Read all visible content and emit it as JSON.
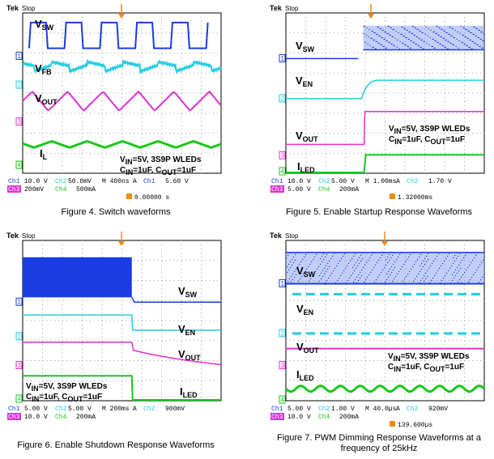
{
  "scope_brand": "Tek",
  "scope_state": "Stop",
  "colors": {
    "ch1": "#1a3ce0",
    "ch2": "#22cde0",
    "ch3": "#e030d0",
    "ch4": "#18c818",
    "trig": "#f08c10"
  },
  "panels": [
    {
      "labels": [
        [
          "V",
          "SW",
          ""
        ],
        [
          "V",
          "FB",
          ""
        ],
        [
          "V",
          "OUT",
          ""
        ],
        [
          "I",
          "L",
          ""
        ]
      ],
      "note_line1": [
        "V",
        "IN",
        "=5V, 3S9P WLEDs"
      ],
      "note_line2": [
        "C",
        "IN",
        "=1uF, C",
        "OUT",
        "=1uF"
      ],
      "status_row1": [
        "Ch1",
        "10.0 V",
        "Ch2",
        "50.0mV",
        "M 400ns",
        "A",
        "Ch1",
        "5.60 V"
      ],
      "status_row2": [
        "Ch3",
        "200mV",
        "Ch4",
        "500mA"
      ],
      "trigger_text": "0.00000 s",
      "caption": "Figure 4. Switch waveforms"
    },
    {
      "labels": [
        [
          "V",
          "SW",
          ""
        ],
        [
          "V",
          "EN",
          ""
        ],
        [
          "V",
          "OUT",
          ""
        ],
        [
          "I",
          "LED",
          ""
        ]
      ],
      "note_line1": [
        "V",
        "IN",
        "=5V, 3S9P WLEDs"
      ],
      "note_line2": [
        "C",
        "IN",
        "=1uF, C",
        "OUT",
        "=1uF"
      ],
      "status_row1": [
        "Ch1",
        "10.0 V",
        "Ch2",
        "5.00 V",
        "M 1.00ms",
        "A",
        "Ch2",
        "1.70 V"
      ],
      "status_row2": [
        "Ch3",
        "5.00 V",
        "Ch4",
        "200mA"
      ],
      "trigger_text": "1.32000ms",
      "caption": "Figure 5. Enable Startup Response Waveforms"
    },
    {
      "labels": [
        [
          "V",
          "SW",
          ""
        ],
        [
          "V",
          "EN",
          ""
        ],
        [
          "V",
          "OUT",
          ""
        ],
        [
          "I",
          "LED",
          ""
        ]
      ],
      "note_line1": [
        "V",
        "IN",
        "=5V, 3S9P WLEDs"
      ],
      "note_line2": [
        "C",
        "IN",
        "=1uF, C",
        "OUT",
        "=1uF"
      ],
      "status_row1": [
        "Ch1",
        "5.00 V",
        "Ch2",
        "5.00 V",
        "M 200ms",
        "A",
        "Ch2",
        "900mV"
      ],
      "status_row2": [
        "Ch3",
        "10.0 V",
        "Ch4",
        "200mA"
      ],
      "trigger_text": "",
      "caption": "Figure 6. Enable Shutdown Response Waveforms"
    },
    {
      "labels": [
        [
          "V",
          "SW",
          ""
        ],
        [
          "V",
          "EN",
          ""
        ],
        [
          "V",
          "OUT",
          ""
        ],
        [
          "I",
          "LED",
          ""
        ]
      ],
      "note_line1": [
        "V",
        "IN",
        "=5V, 3S9P WLEDs"
      ],
      "note_line2": [
        "C",
        "IN",
        "=1uF, C",
        "OUT",
        "=1uF"
      ],
      "status_row1": [
        "Ch1",
        "5.00 V",
        "Ch2",
        "1.00 V",
        "M 40.0µs",
        "A",
        "Ch2",
        "920mV"
      ],
      "status_row2": [
        "Ch3",
        "10.0 V",
        "Ch4",
        "200mA"
      ],
      "trigger_text": "139.600µs",
      "caption": "Figure 7. PWM Dimming Response Waveforms at a frequency of 25kHz"
    }
  ]
}
